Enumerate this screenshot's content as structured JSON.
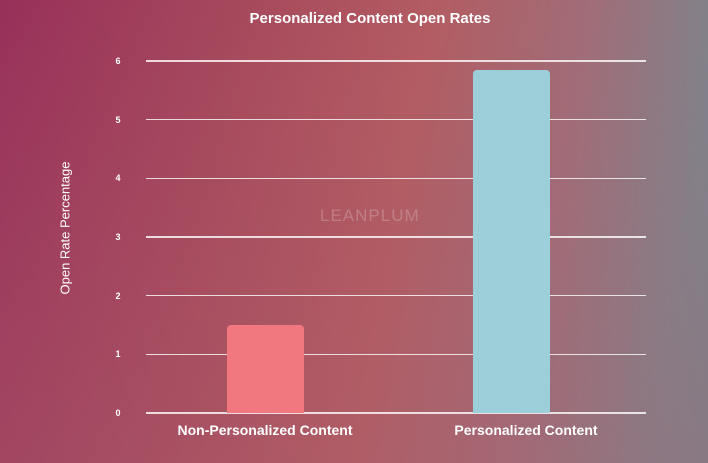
{
  "chart_data": {
    "type": "bar",
    "title": "Personalized Content Open Rates",
    "xlabel": "",
    "ylabel": "Open Rate Percentage",
    "categories": [
      "Non-Personalized Content",
      "Personalized Content"
    ],
    "values": [
      1.5,
      5.85
    ],
    "colors": [
      "#f27880",
      "#9ccfd9"
    ],
    "ylim": [
      0,
      6
    ],
    "yticks": [
      "0",
      "1",
      "2",
      "3",
      "4",
      "5",
      "6"
    ],
    "grid": true,
    "legend": null
  },
  "watermark": "LEANPLUM"
}
